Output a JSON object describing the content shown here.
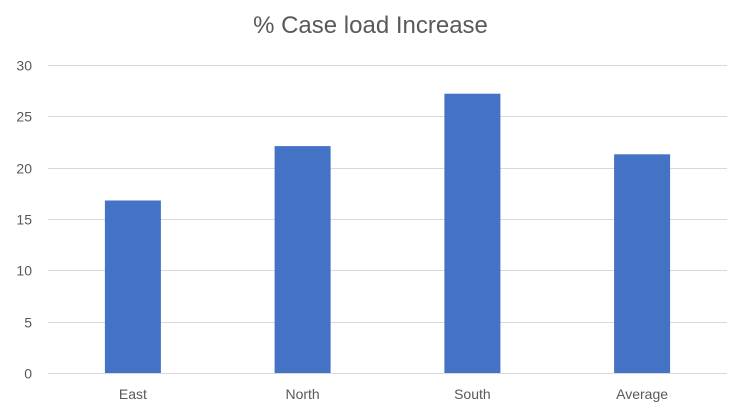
{
  "chart_data": {
    "type": "bar",
    "title": "% Case load Increase",
    "xlabel": "",
    "ylabel": "",
    "categories": [
      "East",
      "North",
      "South",
      "Average"
    ],
    "values": [
      16.8,
      22.1,
      27.2,
      21.3
    ],
    "ylim": [
      0,
      30
    ],
    "yticks": [
      0,
      5,
      10,
      15,
      20,
      25,
      30
    ],
    "grid": true,
    "legend": "none",
    "bar_color": "#4472C4",
    "grid_color": "#D9D9D9",
    "text_color": "#595959"
  }
}
